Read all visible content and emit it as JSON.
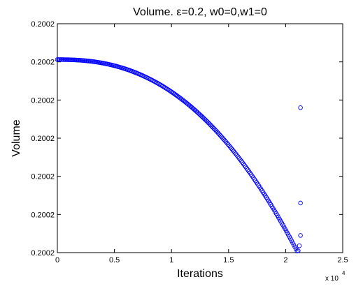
{
  "chart_data": {
    "type": "scatter",
    "title": "Volume.   ε=0.2, w0=0,w1=0",
    "xlabel": "Iterations",
    "ylabel": "Volume",
    "x_exponent_label": "x 10",
    "x_exponent_power": "4",
    "xlim": [
      0,
      2.5
    ],
    "ylim": [
      0,
      6
    ],
    "x_ticks": [
      0,
      0.5,
      1,
      1.5,
      2,
      2.5
    ],
    "x_tick_labels": [
      "0",
      "0.5",
      "1",
      "1.5",
      "2",
      "2.5"
    ],
    "y_ticks": [
      0,
      1,
      2,
      3,
      4,
      5,
      6
    ],
    "y_tick_labels": [
      "0.2002",
      "0.2002",
      "0.2002",
      "0.2002",
      "0.2002",
      "0.2002",
      "0.2002"
    ],
    "grid": false,
    "legend": "none",
    "marker": "circle-open",
    "series_color": "#0000ff",
    "curve": {
      "x_start": 0,
      "x_end": 2.1,
      "y_start": 5.06,
      "y_end": 0.04,
      "shape_power": 2.4,
      "n_points": 220
    },
    "outliers": [
      {
        "x": 2.13,
        "y": 3.8
      },
      {
        "x": 2.13,
        "y": 1.3
      },
      {
        "x": 2.13,
        "y": 0.45
      },
      {
        "x": 2.12,
        "y": 0.18
      },
      {
        "x": 2.11,
        "y": 0.05
      }
    ]
  }
}
